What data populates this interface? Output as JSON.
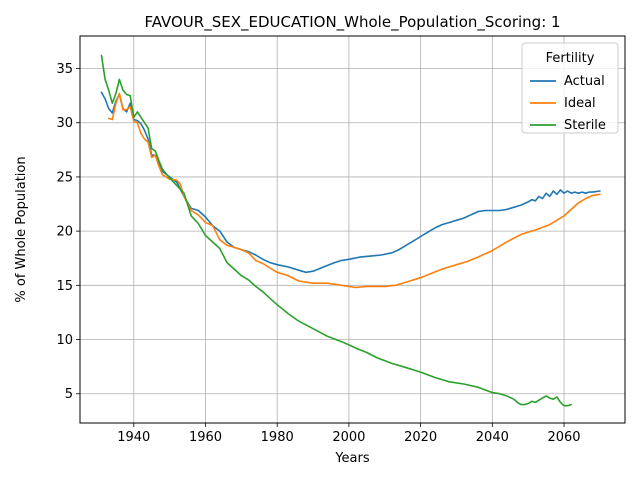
{
  "chart_data": {
    "type": "line",
    "title": "FAVOUR_SEX_EDUCATION_Whole_Population_Scoring: 1",
    "xlabel": "Years",
    "ylabel": "% of Whole Population",
    "xlim": [
      1925,
      2077
    ],
    "ylim": [
      2.3,
      38.0
    ],
    "xticks": [
      1940,
      1960,
      1980,
      2000,
      2020,
      2040,
      2060
    ],
    "yticks": [
      5,
      10,
      15,
      20,
      25,
      30,
      35
    ],
    "grid": true,
    "legend": {
      "title": "Fertility",
      "placement": "upper right",
      "entries": [
        "Actual",
        "Ideal",
        "Sterile"
      ]
    },
    "series": [
      {
        "name": "Actual",
        "color": "#1f77b4",
        "x": [
          1931,
          1932,
          1933,
          1934,
          1935,
          1936,
          1937,
          1938,
          1939,
          1940,
          1941,
          1942,
          1943,
          1944,
          1945,
          1946,
          1947,
          1948,
          1950,
          1952,
          1954,
          1956,
          1958,
          1960,
          1962,
          1964,
          1966,
          1968,
          1970,
          1972,
          1974,
          1976,
          1978,
          1980,
          1983,
          1986,
          1988,
          1990,
          1993,
          1996,
          1998,
          2000,
          2003,
          2006,
          2009,
          2012,
          2014,
          2016,
          2018,
          2020,
          2022,
          2024,
          2026,
          2028,
          2030,
          2032,
          2034,
          2036,
          2038,
          2040,
          2042,
          2044,
          2046,
          2048,
          2050,
          2051,
          2052,
          2053,
          2054,
          2055,
          2056,
          2057,
          2058,
          2059,
          2060,
          2061,
          2062,
          2063,
          2064,
          2065,
          2066,
          2067,
          2068,
          2070
        ],
        "y": [
          32.8,
          32.2,
          31.3,
          30.9,
          32.0,
          32.6,
          31.3,
          31.0,
          31.8,
          30.3,
          30.2,
          29.9,
          29.3,
          28.5,
          27.0,
          27.0,
          26.2,
          25.5,
          25.0,
          24.5,
          23.2,
          22.1,
          21.9,
          21.3,
          20.5,
          20.0,
          19.0,
          18.5,
          18.3,
          18.1,
          17.8,
          17.4,
          17.1,
          16.9,
          16.7,
          16.4,
          16.2,
          16.3,
          16.7,
          17.1,
          17.3,
          17.4,
          17.6,
          17.7,
          17.8,
          18.0,
          18.3,
          18.7,
          19.1,
          19.5,
          19.9,
          20.3,
          20.6,
          20.8,
          21.0,
          21.2,
          21.5,
          21.8,
          21.9,
          21.9,
          21.9,
          22.0,
          22.2,
          22.4,
          22.7,
          22.9,
          22.8,
          23.2,
          23.0,
          23.5,
          23.2,
          23.7,
          23.4,
          23.8,
          23.5,
          23.7,
          23.5,
          23.6,
          23.5,
          23.6,
          23.5,
          23.6,
          23.6,
          23.7
        ]
      },
      {
        "name": "Ideal",
        "color": "#ff7f0e",
        "x": [
          1933,
          1934,
          1935,
          1936,
          1937,
          1938,
          1939,
          1940,
          1941,
          1942,
          1943,
          1944,
          1945,
          1946,
          1947,
          1948,
          1950,
          1952,
          1953,
          1954,
          1956,
          1958,
          1960,
          1962,
          1964,
          1966,
          1968,
          1970,
          1972,
          1974,
          1976,
          1978,
          1980,
          1983,
          1986,
          1990,
          1994,
          1998,
          2000,
          2002,
          2005,
          2010,
          2013,
          2016,
          2020,
          2023,
          2026,
          2030,
          2033,
          2036,
          2040,
          2044,
          2048,
          2052,
          2056,
          2060,
          2062,
          2064,
          2066,
          2068,
          2070
        ],
        "y": [
          30.4,
          30.3,
          31.8,
          32.7,
          31.2,
          31.2,
          31.5,
          30.1,
          30.0,
          29.0,
          28.5,
          28.2,
          26.8,
          27.0,
          26.0,
          25.2,
          24.8,
          24.7,
          24.3,
          23.2,
          21.9,
          21.5,
          20.8,
          20.5,
          19.2,
          18.7,
          18.5,
          18.3,
          18.0,
          17.3,
          17.0,
          16.6,
          16.2,
          15.9,
          15.4,
          15.2,
          15.2,
          15.0,
          14.9,
          14.8,
          14.9,
          14.9,
          15.0,
          15.3,
          15.7,
          16.1,
          16.5,
          16.9,
          17.2,
          17.6,
          18.2,
          19.0,
          19.7,
          20.1,
          20.6,
          21.4,
          22.0,
          22.6,
          23.0,
          23.3,
          23.4
        ]
      },
      {
        "name": "Sterile",
        "color": "#2ca02c",
        "x": [
          1931,
          1932,
          1933,
          1934,
          1935,
          1936,
          1937,
          1938,
          1939,
          1940,
          1941,
          1942,
          1943,
          1944,
          1945,
          1946,
          1947,
          1948,
          1950,
          1952,
          1954,
          1956,
          1958,
          1960,
          1962,
          1964,
          1966,
          1968,
          1970,
          1972,
          1974,
          1976,
          1978,
          1980,
          1983,
          1986,
          1990,
          1994,
          1998,
          2000,
          2002,
          2005,
          2008,
          2012,
          2016,
          2020,
          2024,
          2028,
          2032,
          2036,
          2040,
          2042,
          2044,
          2046,
          2047,
          2048,
          2049,
          2050,
          2051,
          2052,
          2053,
          2054,
          2055,
          2056,
          2057,
          2058,
          2059,
          2060,
          2061,
          2062
        ],
        "y": [
          36.2,
          34.0,
          33.0,
          31.8,
          32.7,
          34.0,
          33.0,
          32.6,
          32.5,
          30.5,
          31.0,
          30.5,
          30.0,
          29.5,
          27.6,
          27.4,
          26.5,
          25.7,
          24.9,
          24.2,
          23.5,
          21.4,
          20.7,
          19.6,
          19.0,
          18.4,
          17.1,
          16.5,
          15.9,
          15.5,
          14.9,
          14.4,
          13.8,
          13.2,
          12.4,
          11.7,
          11.0,
          10.3,
          9.8,
          9.5,
          9.2,
          8.8,
          8.3,
          7.8,
          7.4,
          7.0,
          6.5,
          6.1,
          5.9,
          5.6,
          5.1,
          5.0,
          4.8,
          4.5,
          4.2,
          4.0,
          4.0,
          4.1,
          4.3,
          4.2,
          4.4,
          4.6,
          4.8,
          4.6,
          4.5,
          4.7,
          4.2,
          3.9,
          3.9,
          4.0
        ]
      }
    ]
  }
}
